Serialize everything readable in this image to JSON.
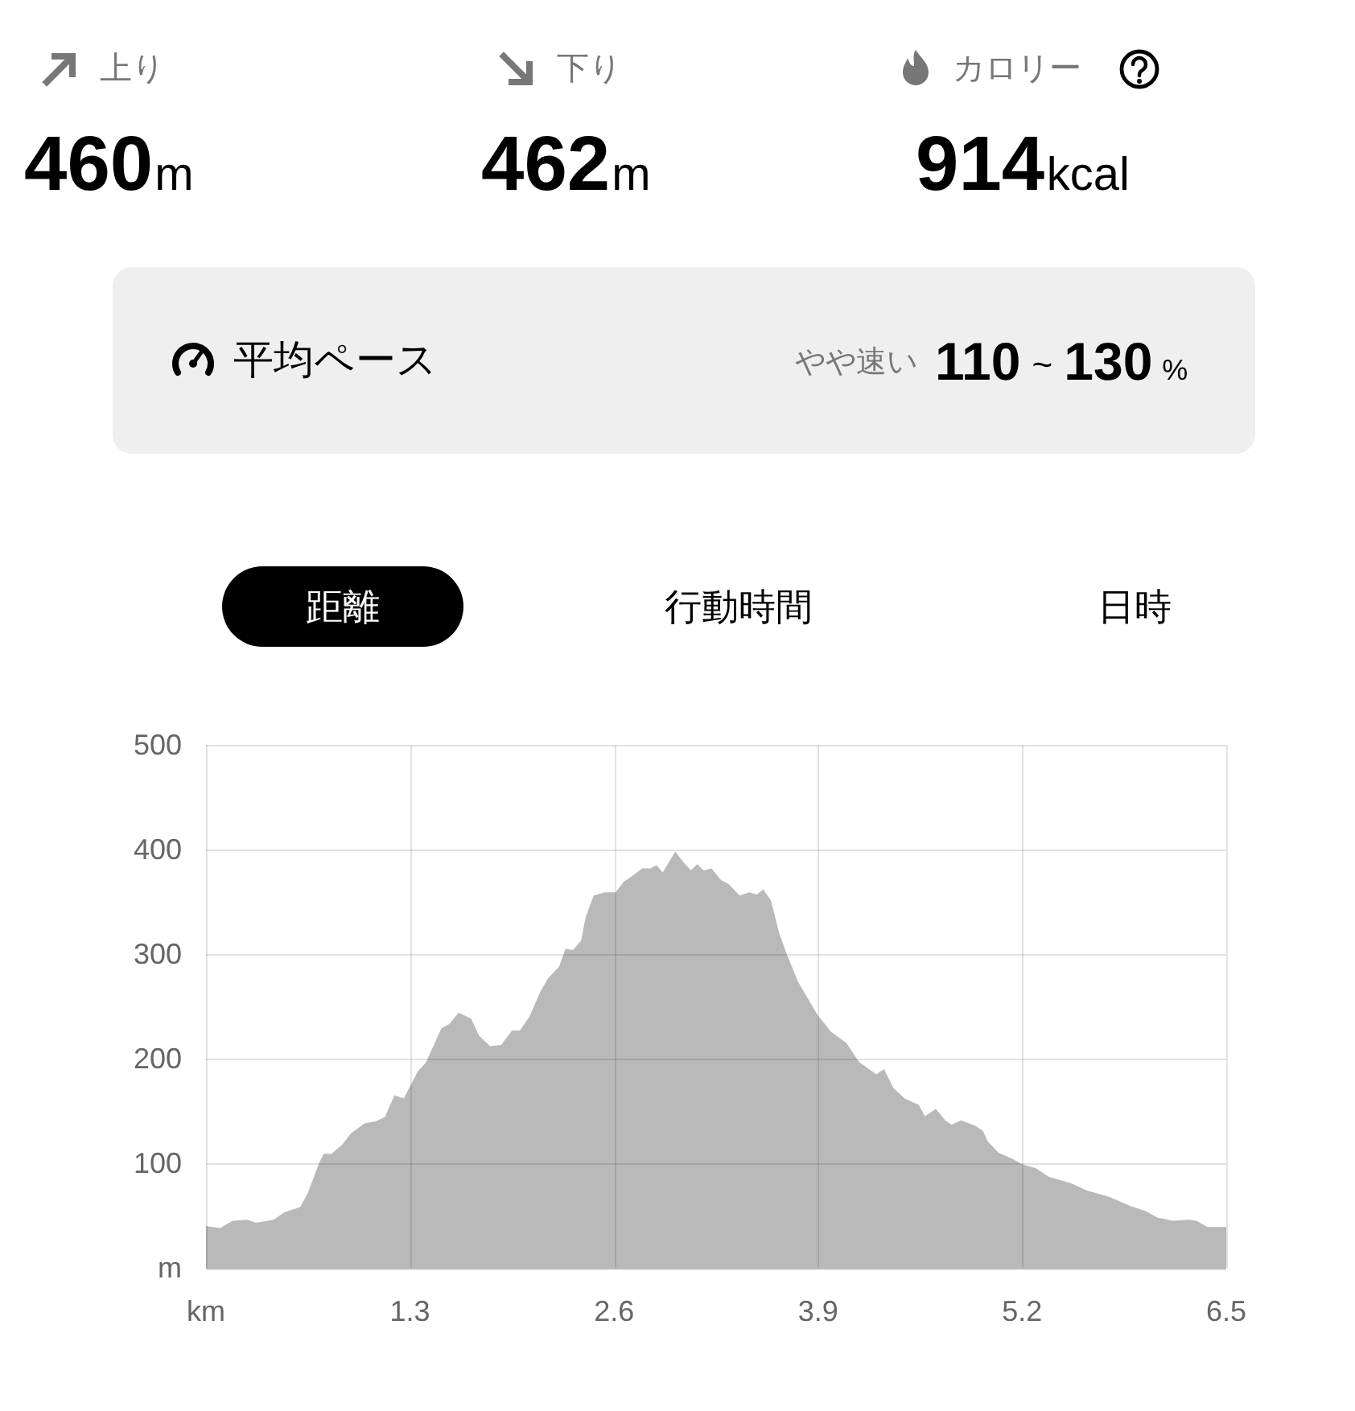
{
  "chart_data": [
    {
      "type": "other",
      "annotations": [
        "上り",
        "460",
        "m",
        "下り",
        "462",
        "m",
        "カロリー",
        "914",
        "kcal",
        "平均ペース",
        "やや速い",
        "110",
        "~",
        "130",
        "%",
        "距離",
        "行動時間",
        "日時"
      ]
    },
    {
      "type": "area",
      "color": "#b9b9b9",
      "x": [
        0,
        0.09,
        0.17,
        0.26,
        0.32,
        0.43,
        0.5,
        0.6,
        0.65,
        0.72,
        0.75,
        0.8,
        0.87,
        0.92,
        1.01,
        1.08,
        1.14,
        1.2,
        1.26,
        1.35,
        1.4,
        1.5,
        1.55,
        1.61,
        1.69,
        1.74,
        1.81,
        1.88,
        1.95,
        2,
        2.06,
        2.13,
        2.18,
        2.25,
        2.29,
        2.34,
        2.39,
        2.42,
        2.47,
        2.54,
        2.61,
        2.66,
        2.71,
        2.78,
        2.83,
        2.87,
        2.91,
        2.99,
        3.04,
        3.09,
        3.13,
        3.17,
        3.22,
        3.28,
        3.33,
        3.4,
        3.46,
        3.51,
        3.55,
        3.6,
        3.65,
        3.7,
        3.77,
        3.84,
        3.9,
        3.98,
        4.08,
        4.16,
        4.27,
        4.32,
        4.38,
        4.45,
        4.54,
        4.58,
        4.65,
        4.71,
        4.75,
        4.81,
        4.9,
        4.95,
        4.98,
        5.05,
        5.14,
        5.2,
        5.29,
        5.37,
        5.51,
        5.61,
        5.75,
        5.89,
        5.99,
        6.06,
        6.16,
        6.26,
        6.31,
        6.38,
        6.5
      ],
      "values": [
        40,
        38,
        45,
        46,
        43,
        46,
        53,
        58,
        72,
        100,
        109,
        109,
        118,
        128,
        138,
        140,
        144,
        165,
        162,
        188,
        196,
        229,
        233,
        244,
        238,
        222,
        212,
        213,
        227,
        227,
        240,
        264,
        277,
        288,
        305,
        304,
        313,
        336,
        356,
        359,
        359,
        369,
        374,
        382,
        382,
        385,
        378,
        398,
        388,
        380,
        386,
        380,
        382,
        371,
        367,
        356,
        359,
        357,
        362,
        351,
        321,
        300,
        274,
        256,
        241,
        226,
        215,
        197,
        185,
        190,
        172,
        162,
        156,
        145,
        152,
        141,
        137,
        141,
        136,
        131,
        121,
        110,
        104,
        99,
        95,
        87,
        81,
        74,
        68,
        59,
        54,
        48,
        45,
        46,
        45,
        39,
        39
      ],
      "xlim": [
        0,
        6.5
      ],
      "ylim": [
        0,
        500
      ],
      "xticks": [
        {
          "value": 0,
          "label": "km"
        },
        1.3,
        2.6,
        3.9,
        5.2,
        6.5
      ],
      "yticks": [
        {
          "value": 0,
          "label": "m"
        },
        100,
        200,
        300,
        400,
        500
      ],
      "grid": true
    }
  ]
}
